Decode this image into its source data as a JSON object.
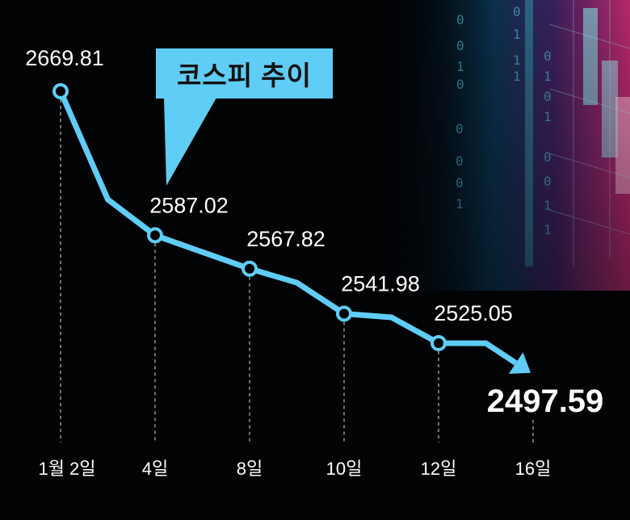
{
  "chart_data": {
    "type": "line",
    "title": "코스피 추이",
    "x_days": [
      2,
      3,
      4,
      5,
      8,
      9,
      10,
      11,
      12,
      15,
      16
    ],
    "values": [
      2669.81,
      2607.6,
      2587.02,
      2577.4,
      2567.82,
      2559.8,
      2541.98,
      2539.9,
      2525.05,
      2525.0,
      2497.59
    ],
    "labeled_points": [
      {
        "day": 2,
        "tick": "1월 2일",
        "label": "2669.81"
      },
      {
        "day": 4,
        "tick": "4일",
        "label": "2587.02"
      },
      {
        "day": 8,
        "tick": "8일",
        "label": "2567.82"
      },
      {
        "day": 10,
        "tick": "10일",
        "label": "2541.98"
      },
      {
        "day": 12,
        "tick": "12일",
        "label": "2525.05"
      },
      {
        "day": 16,
        "tick": "16일",
        "label": "2497.59"
      }
    ],
    "xlabel": "",
    "ylabel": "",
    "grid": false,
    "line_color": "#5fcdf5",
    "final_label_color": "#ffffff",
    "background": "#000000"
  }
}
